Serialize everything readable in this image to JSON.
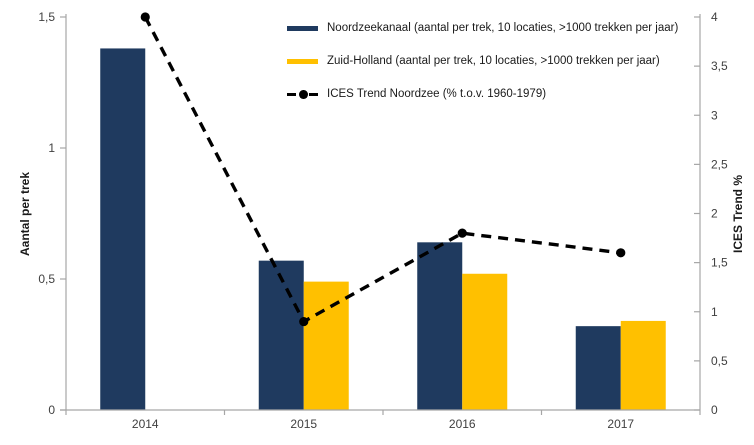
{
  "chart_data": {
    "type": "combo-bar-line",
    "title": "",
    "categories": [
      "2014",
      "2015",
      "2016",
      "2017"
    ],
    "bar_series": [
      {
        "name": "Noordzeekanaal (aantal per trek, 10 locaties, >1000 trekken per jaar)",
        "color": "#1F3A5F",
        "axis": "left",
        "values": [
          1.38,
          0.57,
          0.64,
          0.32
        ]
      },
      {
        "name": "Zuid-Holland (aantal per trek, 10 locaties, >1000 trekken per jaar)",
        "color": "#FFC000",
        "axis": "left",
        "values": [
          null,
          0.49,
          0.52,
          0.34
        ]
      }
    ],
    "line_series": [
      {
        "name": "ICES Trend Noordzee (% t.o.v. 1960-1979)",
        "color": "#000000",
        "style": "dashed",
        "marker": "filled-circle",
        "axis": "right",
        "values": [
          4.0,
          0.9,
          1.8,
          1.6
        ]
      }
    ],
    "left_axis": {
      "title": "Aantal per trek",
      "min": 0,
      "max": 1.5,
      "tick_labels": [
        "0",
        "0,5",
        "1",
        "1,5"
      ]
    },
    "right_axis": {
      "title": "ICES Trend %",
      "min": 0,
      "max": 4,
      "tick_labels": [
        "0",
        "0,5",
        "1",
        "1,5",
        "2",
        "2,5",
        "3",
        "3,5",
        "4"
      ]
    },
    "grid": false,
    "legend_position": "top-right",
    "axis_color": "#A6A6A6",
    "text_color": "#404040",
    "background": "#FFFFFF"
  }
}
